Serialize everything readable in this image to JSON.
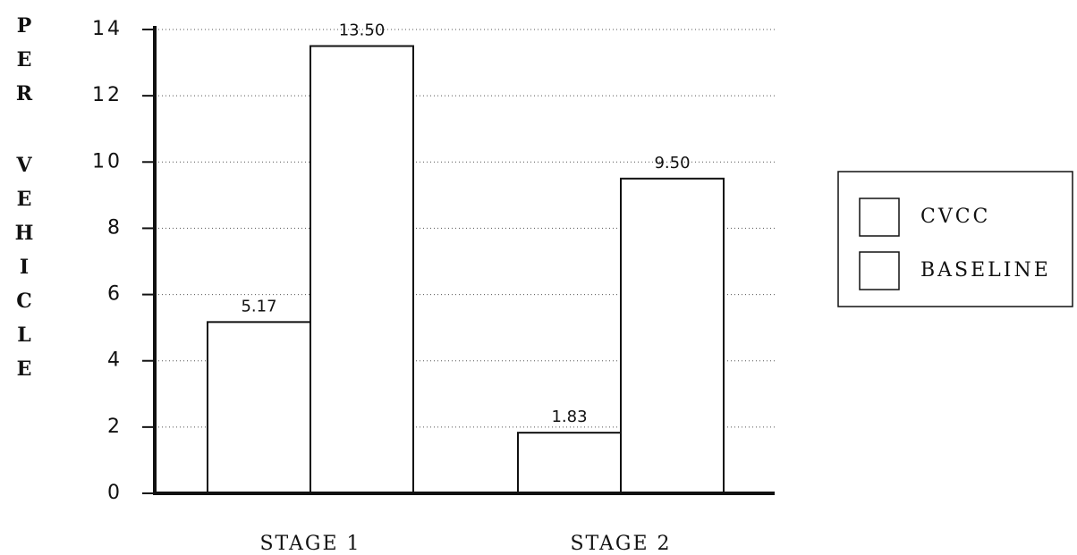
{
  "chart_data": {
    "type": "bar",
    "title": "",
    "ylabel": "PER VEHICLE",
    "xlabel": "",
    "categories": [
      "STAGE 1",
      "STAGE 2"
    ],
    "series": [
      {
        "name": "CVCC",
        "values": [
          5.17,
          1.83
        ],
        "labels": [
          "5.17",
          "1.83"
        ]
      },
      {
        "name": "BASELINE",
        "values": [
          13.5,
          9.5
        ],
        "labels": [
          "13.50",
          "9.50"
        ]
      }
    ],
    "ylim": [
      0,
      14
    ],
    "yticks": [
      0,
      2,
      4,
      6,
      8,
      10,
      12,
      14
    ],
    "ytick_labels": [
      "0",
      "2",
      "4",
      "6",
      "8",
      "10",
      "12",
      "14"
    ],
    "grid": true,
    "legend_position": "right",
    "colors": {
      "bar_fill": "#ffffff",
      "bar_stroke": "#111111",
      "axis": "#111111",
      "grid": "#555555"
    }
  }
}
